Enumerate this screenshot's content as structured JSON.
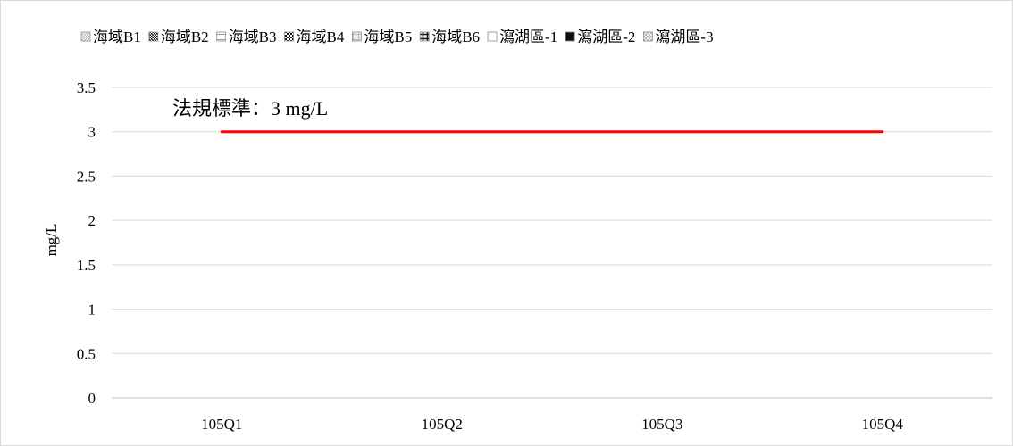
{
  "chart_data": {
    "type": "line",
    "categories": [
      "105Q1",
      "105Q2",
      "105Q3",
      "105Q4"
    ],
    "ylabel": "mg/L",
    "ylim": [
      0,
      3.5
    ],
    "yticks": [
      0,
      0.5,
      1,
      1.5,
      2,
      2.5,
      3,
      3.5
    ],
    "grid": true,
    "legend_position": "top",
    "legend": [
      {
        "name": "海域B1",
        "marker": "hatch-light"
      },
      {
        "name": "海域B2",
        "marker": "diagonal-dark"
      },
      {
        "name": "海域B3",
        "marker": "horizontal-light"
      },
      {
        "name": "海域B4",
        "marker": "checker-dark"
      },
      {
        "name": "海域B5",
        "marker": "dots-light"
      },
      {
        "name": "海域B6",
        "marker": "grid-dark"
      },
      {
        "name": "瀉湖區-1",
        "marker": "empty"
      },
      {
        "name": "瀉湖區-2",
        "marker": "solid-dark"
      },
      {
        "name": "瀉湖區-3",
        "marker": "cross-light"
      }
    ],
    "series": [],
    "reference_line": {
      "value": 3,
      "from": "105Q1",
      "to": "105Q4",
      "color": "#ff0000"
    },
    "annotation": "法規標準：3 mg/L"
  }
}
